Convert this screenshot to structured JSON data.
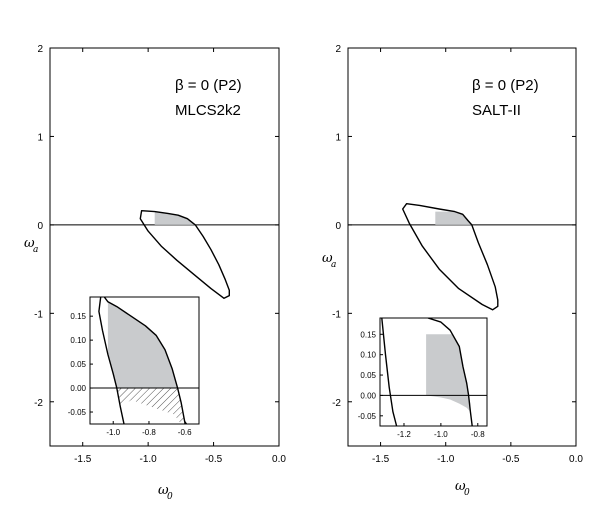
{
  "chart_data": [
    {
      "type": "line",
      "xlabel": "ω",
      "xlabel_sub": "0",
      "ylabel": "ω",
      "ylabel_sub": "a",
      "xlim": [
        -1.75,
        0.0
      ],
      "ylim": [
        -2.5,
        2.0
      ],
      "xticks": [
        -1.5,
        -1.0,
        -0.5,
        0.0
      ],
      "xtick_labels": [
        "-1.5",
        "-1.0",
        "-0.5",
        "0.0"
      ],
      "yticks": [
        -2,
        -1,
        0,
        1,
        2
      ],
      "ytick_labels": [
        "-2",
        "-1",
        "0",
        "1",
        "2"
      ],
      "annotations": [
        "β = 0 (P2)",
        "MLCS2k2"
      ],
      "reference_line_y": 0,
      "contour": [
        [
          -1.05,
          0.16
        ],
        [
          -0.95,
          0.15
        ],
        [
          -0.85,
          0.13
        ],
        [
          -0.77,
          0.11
        ],
        [
          -0.7,
          0.07
        ],
        [
          -0.64,
          0.0
        ],
        [
          -0.58,
          -0.13
        ],
        [
          -0.52,
          -0.28
        ],
        [
          -0.46,
          -0.45
        ],
        [
          -0.41,
          -0.62
        ],
        [
          -0.38,
          -0.74
        ],
        [
          -0.38,
          -0.8
        ],
        [
          -0.42,
          -0.83
        ],
        [
          -0.52,
          -0.72
        ],
        [
          -0.65,
          -0.56
        ],
        [
          -0.78,
          -0.4
        ],
        [
          -0.9,
          -0.24
        ],
        [
          -1.0,
          -0.07
        ],
        [
          -1.06,
          0.07
        ],
        [
          -1.05,
          0.16
        ]
      ],
      "shaded_region": [
        [
          -0.95,
          0.15
        ],
        [
          -0.85,
          0.13
        ],
        [
          -0.77,
          0.11
        ],
        [
          -0.7,
          0.07
        ],
        [
          -0.66,
          0.02
        ],
        [
          -0.64,
          0.0
        ],
        [
          -0.95,
          0.0
        ]
      ],
      "inset": {
        "xlim": [
          -1.13,
          -0.52
        ],
        "ylim": [
          -0.075,
          0.19
        ],
        "xticks": [
          -1.0,
          -0.8,
          -0.6
        ],
        "xtick_labels": [
          "-1.0",
          "-0.8",
          "-0.6"
        ],
        "yticks": [
          -0.05,
          0.0,
          0.05,
          0.1,
          0.15
        ],
        "ytick_labels": [
          "-0.05",
          "0.00",
          "0.05",
          "0.10",
          "0.15"
        ],
        "contour_outer": [
          [
            -1.07,
            0.19
          ],
          [
            -1.08,
            0.16
          ],
          [
            -1.06,
            0.12
          ],
          [
            -1.03,
            0.07
          ],
          [
            -1.0,
            0.03
          ],
          [
            -0.98,
            0.0
          ],
          [
            -0.96,
            -0.04
          ],
          [
            -0.94,
            -0.075
          ]
        ],
        "contour_inner": [
          [
            -1.05,
            0.19
          ],
          [
            -1.03,
            0.18
          ],
          [
            -0.98,
            0.17
          ],
          [
            -0.9,
            0.15
          ],
          [
            -0.82,
            0.13
          ],
          [
            -0.76,
            0.11
          ],
          [
            -0.71,
            0.08
          ],
          [
            -0.67,
            0.04
          ],
          [
            -0.64,
            0.0
          ],
          [
            -0.62,
            -0.03
          ],
          [
            -0.6,
            -0.07
          ],
          [
            -0.59,
            -0.075
          ]
        ],
        "shaded_region": [
          [
            -1.03,
            0.18
          ],
          [
            -0.98,
            0.17
          ],
          [
            -0.9,
            0.15
          ],
          [
            -0.82,
            0.13
          ],
          [
            -0.76,
            0.11
          ],
          [
            -0.71,
            0.08
          ],
          [
            -0.67,
            0.04
          ],
          [
            -0.64,
            0.0
          ],
          [
            -0.98,
            0.0
          ],
          [
            -1.0,
            0.03
          ],
          [
            -1.03,
            0.07
          ],
          [
            -1.03,
            0.12
          ]
        ],
        "hatched_region": [
          [
            -0.98,
            0.0
          ],
          [
            -0.64,
            0.0
          ],
          [
            -0.62,
            -0.03
          ],
          [
            -0.6,
            -0.07
          ],
          [
            -0.59,
            -0.075
          ],
          [
            -0.62,
            -0.075
          ],
          [
            -0.66,
            -0.055
          ],
          [
            -0.78,
            -0.04
          ],
          [
            -0.9,
            -0.025
          ],
          [
            -0.96,
            -0.04
          ]
        ]
      }
    },
    {
      "type": "line",
      "xlabel": "ω",
      "xlabel_sub": "0",
      "ylabel": "ω",
      "ylabel_sub": "a",
      "xlim": [
        -1.75,
        0.0
      ],
      "ylim": [
        -2.5,
        2.0
      ],
      "xticks": [
        -1.5,
        -1.0,
        -0.5,
        0.0
      ],
      "xtick_labels": [
        "-1.5",
        "-1.0",
        "-0.5",
        "0.0"
      ],
      "yticks": [
        -2,
        -1,
        0,
        1,
        2
      ],
      "ytick_labels": [
        "-2",
        "-1",
        "0",
        "1",
        "2"
      ],
      "annotations": [
        "β = 0 (P2)",
        "SALT-II"
      ],
      "reference_line_y": 0,
      "contour": [
        [
          -1.3,
          0.24
        ],
        [
          -1.2,
          0.22
        ],
        [
          -1.05,
          0.18
        ],
        [
          -0.93,
          0.15
        ],
        [
          -0.87,
          0.12
        ],
        [
          -0.83,
          0.05
        ],
        [
          -0.8,
          0.0
        ],
        [
          -0.75,
          -0.2
        ],
        [
          -0.68,
          -0.45
        ],
        [
          -0.62,
          -0.7
        ],
        [
          -0.6,
          -0.85
        ],
        [
          -0.6,
          -0.92
        ],
        [
          -0.64,
          -0.96
        ],
        [
          -0.72,
          -0.9
        ],
        [
          -0.9,
          -0.72
        ],
        [
          -1.05,
          -0.5
        ],
        [
          -1.18,
          -0.24
        ],
        [
          -1.28,
          0.02
        ],
        [
          -1.33,
          0.18
        ],
        [
          -1.3,
          0.24
        ]
      ],
      "shaded_region": [
        [
          -1.08,
          0.15
        ],
        [
          -0.93,
          0.15
        ],
        [
          -0.87,
          0.12
        ],
        [
          -0.83,
          0.05
        ],
        [
          -0.8,
          0.0
        ],
        [
          -1.08,
          0.0
        ]
      ],
      "inset": {
        "xlim": [
          -1.33,
          -0.75
        ],
        "ylim": [
          -0.075,
          0.19
        ],
        "xticks": [
          -1.2,
          -1.0,
          -0.8
        ],
        "xtick_labels": [
          "-1.2",
          "-1.0",
          "-0.8"
        ],
        "yticks": [
          -0.05,
          0.0,
          0.05,
          0.1,
          0.15
        ],
        "ytick_labels": [
          "-0.05",
          "0.00",
          "0.05",
          "0.10",
          "0.15"
        ],
        "contour_left": [
          [
            -1.32,
            0.19
          ],
          [
            -1.3,
            0.1
          ],
          [
            -1.28,
            0.02
          ],
          [
            -1.26,
            -0.04
          ],
          [
            -1.24,
            -0.075
          ]
        ],
        "contour_right": [
          [
            -1.07,
            0.19
          ],
          [
            -1.0,
            0.18
          ],
          [
            -0.95,
            0.16
          ],
          [
            -0.9,
            0.12
          ],
          [
            -0.88,
            0.07
          ],
          [
            -0.86,
            0.03
          ],
          [
            -0.85,
            0.0
          ],
          [
            -0.84,
            -0.04
          ],
          [
            -0.83,
            -0.075
          ]
        ],
        "shaded_region": [
          [
            -1.08,
            0.15
          ],
          [
            -0.94,
            0.15
          ],
          [
            -0.9,
            0.12
          ],
          [
            -0.88,
            0.07
          ],
          [
            -0.86,
            0.03
          ],
          [
            -0.85,
            0.0
          ],
          [
            -0.84,
            -0.02
          ],
          [
            -0.84,
            -0.04
          ],
          [
            -0.86,
            -0.03
          ],
          [
            -0.9,
            -0.02
          ],
          [
            -0.95,
            -0.01
          ],
          [
            -1.0,
            -0.005
          ],
          [
            -1.08,
            0.0
          ]
        ]
      }
    }
  ]
}
